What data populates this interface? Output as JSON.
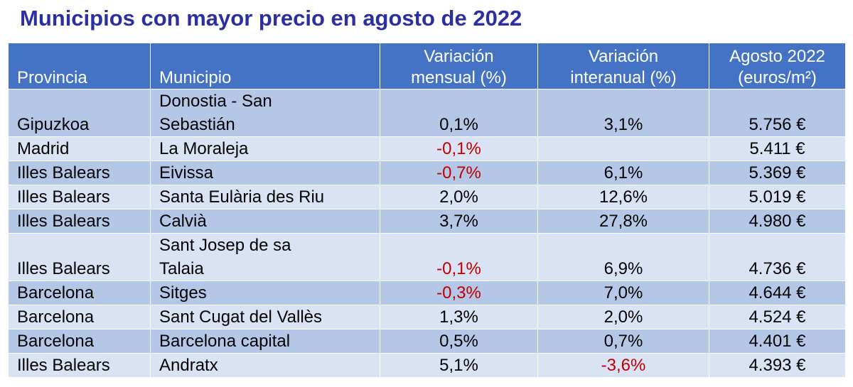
{
  "title": "Municipios con mayor precio en agosto de 2022",
  "table": {
    "headers": [
      {
        "line1": "Provincia",
        "line2": ""
      },
      {
        "line1": "Municipio",
        "line2": ""
      },
      {
        "line1": "Variación",
        "line2": "mensual (%)"
      },
      {
        "line1": "Variación",
        "line2": "interanual (%)"
      },
      {
        "line1": "Agosto 2022",
        "line2": "(euros/m²)"
      }
    ],
    "rows": [
      {
        "provincia": "Gipuzkoa",
        "municipio_l1": "Donostia - San",
        "municipio_l2": "Sebastián",
        "mensual": "0,1%",
        "interanual": "3,1%",
        "precio": "5.756 €"
      },
      {
        "provincia": "Madrid",
        "municipio_l1": "La Moraleja",
        "municipio_l2": "",
        "mensual": "-0,1%",
        "interanual": "",
        "precio": "5.411 €"
      },
      {
        "provincia": "Illes Balears",
        "municipio_l1": "Eivissa",
        "municipio_l2": "",
        "mensual": "-0,7%",
        "interanual": "6,1%",
        "precio": "5.369 €"
      },
      {
        "provincia": "Illes Balears",
        "municipio_l1": "Santa Eulària des Riu",
        "municipio_l2": "",
        "mensual": "2,0%",
        "interanual": "12,6%",
        "precio": "5.019 €"
      },
      {
        "provincia": "Illes Balears",
        "municipio_l1": "Calvià",
        "municipio_l2": "",
        "mensual": "3,7%",
        "interanual": "27,8%",
        "precio": "4.980 €"
      },
      {
        "provincia": "Illes Balears",
        "municipio_l1": "Sant Josep de sa",
        "municipio_l2": "Talaia",
        "mensual": "-0,1%",
        "interanual": "6,9%",
        "precio": "4.736 €"
      },
      {
        "provincia": "Barcelona",
        "municipio_l1": "Sitges",
        "municipio_l2": "",
        "mensual": "-0,3%",
        "interanual": "7,0%",
        "precio": "4.644 €"
      },
      {
        "provincia": "Barcelona",
        "municipio_l1": "Sant Cugat del Vallès",
        "municipio_l2": "",
        "mensual": "1,3%",
        "interanual": "2,0%",
        "precio": "4.524 €"
      },
      {
        "provincia": "Barcelona",
        "municipio_l1": "Barcelona capital",
        "municipio_l2": "",
        "mensual": "0,5%",
        "interanual": "0,7%",
        "precio": "4.401 €"
      },
      {
        "provincia": "Illes Balears",
        "municipio_l1": "Andratx",
        "municipio_l2": "",
        "mensual": "5,1%",
        "interanual": "-3,6%",
        "precio": "4.393 €"
      }
    ]
  },
  "colors": {
    "title": "#2b2fa0",
    "header_bg": "#4472c4",
    "row_dark": "#b4c7e7",
    "row_light": "#dae3f3",
    "negative": "#c00000"
  }
}
